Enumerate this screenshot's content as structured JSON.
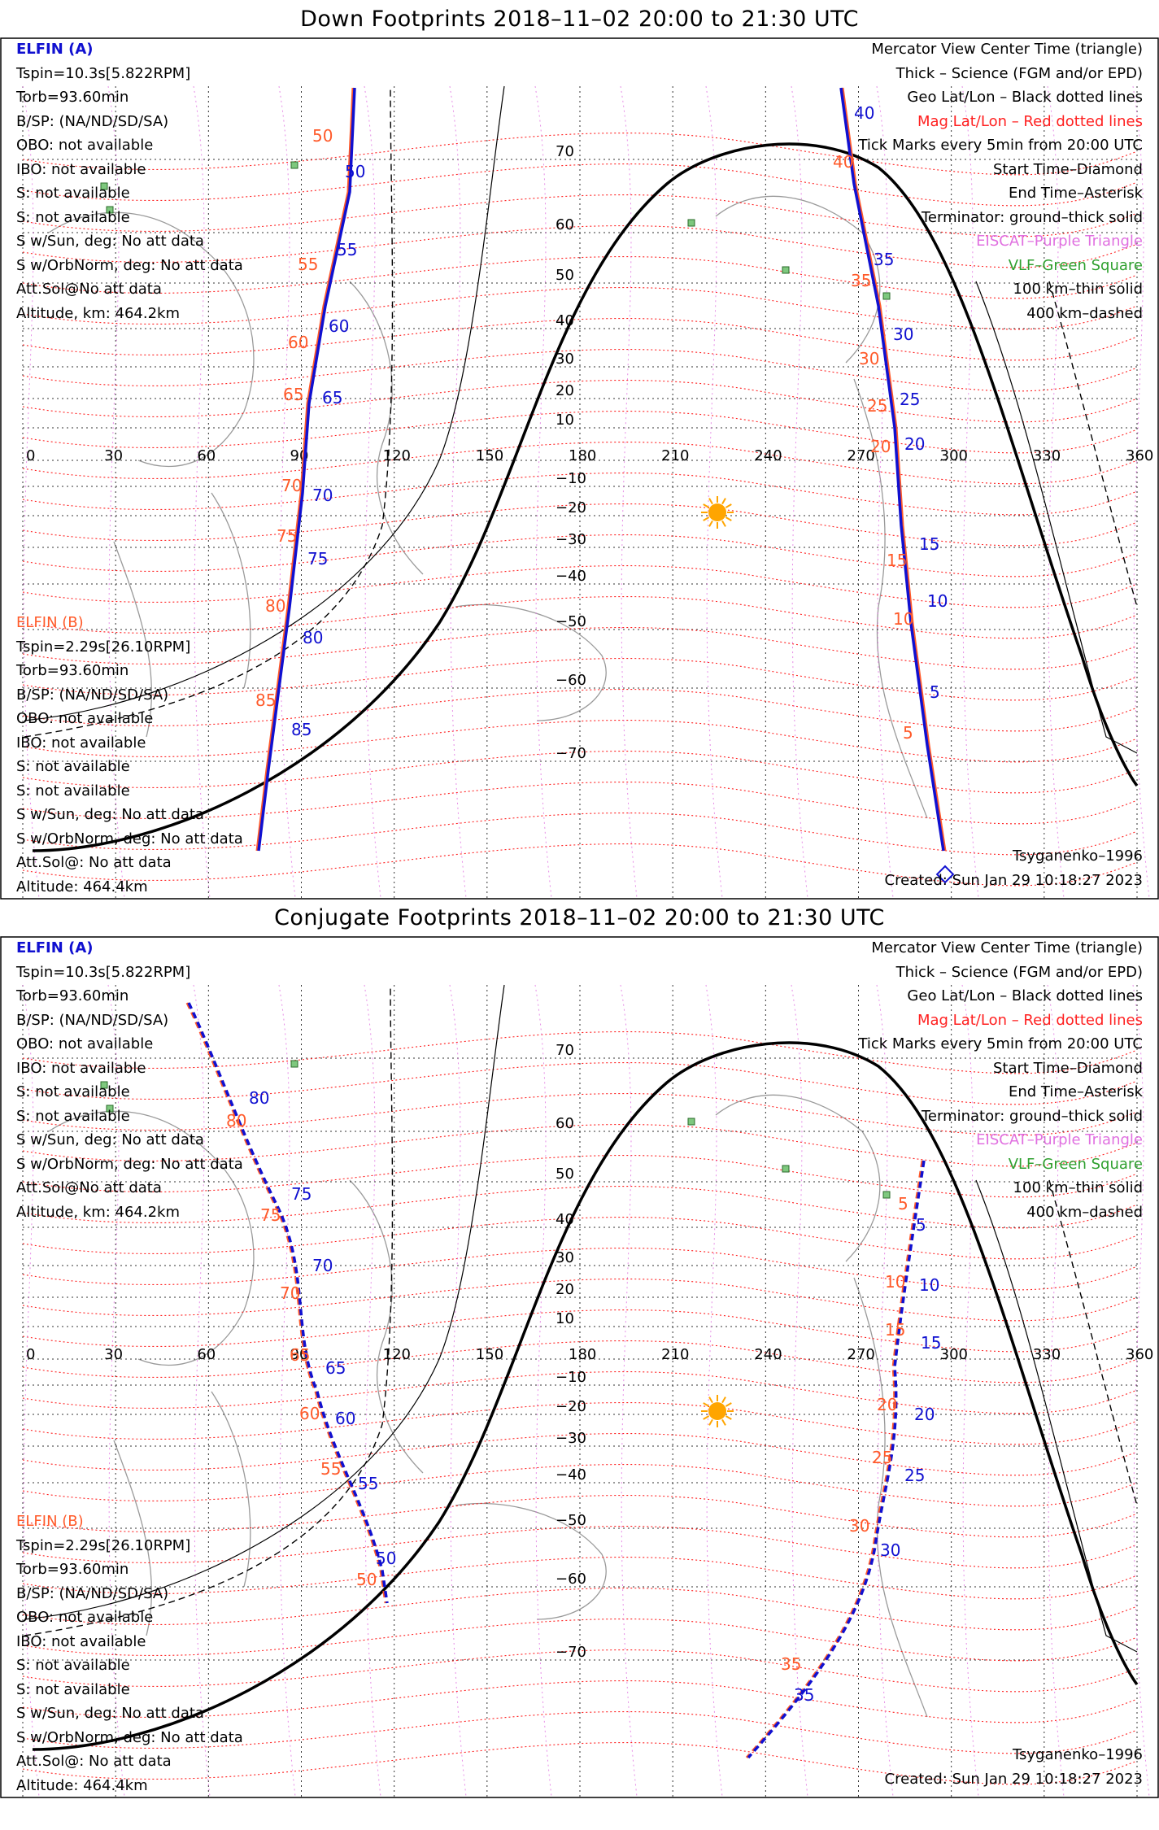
{
  "panels": [
    {
      "id": "down",
      "title": "Down Footprints 2018–11–02 20:00 to 21:30 UTC",
      "elfin_a": {
        "name": "ELFIN (A)",
        "lines": [
          "Tspin=10.3s[5.822RPM]",
          "Torb=93.60min",
          "B/SP: (NA/ND/SD/SA)",
          "OBO: not available",
          "IBO: not available",
          "S: not available",
          "S: not available",
          "S w/Sun, deg: No att data",
          "S w/OrbNorm, deg: No att data",
          "Att.Sol@No att data",
          "Altitude, km: 464.2km"
        ]
      },
      "elfin_b": {
        "name": "ELFIN (B)",
        "lines": [
          "Tspin=2.29s[26.10RPM]",
          "Torb=93.60min",
          "B/SP: (NA/ND/SD/SA)",
          "OBO: not available",
          "IBO: not available",
          "S: not available",
          "S: not available",
          "S w/Sun, deg: No att data",
          "S w/OrbNorm, deg: No att data",
          "Att.Sol@: No att data",
          "Altitude: 464.4km"
        ]
      },
      "legend": [
        {
          "text": "Mercator View Center Time (triangle)",
          "color": "#000000"
        },
        {
          "text": "Thick – Science (FGM and/or EPD)",
          "color": "#000000"
        },
        {
          "text": "Geo Lat/Lon – Black dotted lines",
          "color": "#000000"
        },
        {
          "text": "Mag Lat/Lon – Red dotted lines",
          "color": "#ff2020"
        },
        {
          "text": "Tick Marks every 5min from 20:00 UTC",
          "color": "#000000"
        },
        {
          "text": "Start Time–Diamond",
          "color": "#000000"
        },
        {
          "text": "End Time–Asterisk",
          "color": "#000000"
        },
        {
          "text": "Terminator: ground–thick solid",
          "color": "#000000"
        },
        {
          "text": "EISCAT–Purple Triangle",
          "color": "#e070e0"
        },
        {
          "text": "VLF–Green Square",
          "color": "#30a030"
        },
        {
          "text": "100 km–thin solid",
          "color": "#000000"
        },
        {
          "text": "400 km–dashed",
          "color": "#000000"
        }
      ],
      "model": "Tsyganenko–1996",
      "created": "Created: Sun Jan 29 10:18:27 2023",
      "west_track": {
        "ticks_a": [
          "50",
          "55",
          "60",
          "65",
          "70",
          "75",
          "80",
          "85"
        ],
        "ticks_b": [
          "50",
          "55",
          "60",
          "65",
          "70",
          "75",
          "80",
          "85"
        ]
      },
      "east_track": {
        "ticks_a": [
          "40",
          "35",
          "30",
          "25",
          "20",
          "15",
          "10",
          "5"
        ],
        "ticks_b": [
          "40",
          "35",
          "30",
          "25",
          "20",
          "15",
          "10",
          "5"
        ]
      }
    },
    {
      "id": "conj",
      "title": "Conjugate Footprints 2018–11–02 20:00 to 21:30 UTC",
      "elfin_a": {
        "name": "ELFIN (A)",
        "lines": [
          "Tspin=10.3s[5.822RPM]",
          "Torb=93.60min",
          "B/SP: (NA/ND/SD/SA)",
          "OBO: not available",
          "IBO: not available",
          "S: not available",
          "S: not available",
          "S w/Sun, deg: No att data",
          "S w/OrbNorm, deg: No att data",
          "Att.Sol@No att data",
          "Altitude, km: 464.2km"
        ]
      },
      "elfin_b": {
        "name": "ELFIN (B)",
        "lines": [
          "Tspin=2.29s[26.10RPM]",
          "Torb=93.60min",
          "B/SP: (NA/ND/SD/SA)",
          "OBO: not available",
          "IBO: not available",
          "S: not available",
          "S: not available",
          "S w/Sun, deg: No att data",
          "S w/OrbNorm, deg: No att data",
          "Att.Sol@: No att data",
          "Altitude: 464.4km"
        ]
      },
      "legend": [
        {
          "text": "Mercator View Center Time (triangle)",
          "color": "#000000"
        },
        {
          "text": "Thick – Science (FGM and/or EPD)",
          "color": "#000000"
        },
        {
          "text": "Geo Lat/Lon – Black dotted lines",
          "color": "#000000"
        },
        {
          "text": "Mag Lat/Lon – Red dotted lines",
          "color": "#ff2020"
        },
        {
          "text": "Tick Marks every 5min from 20:00 UTC",
          "color": "#000000"
        },
        {
          "text": "Start Time–Diamond",
          "color": "#000000"
        },
        {
          "text": "End Time–Asterisk",
          "color": "#000000"
        },
        {
          "text": "Terminator: ground–thick solid",
          "color": "#000000"
        },
        {
          "text": "EISCAT–Purple Triangle",
          "color": "#e070e0"
        },
        {
          "text": "VLF–Green Square",
          "color": "#30a030"
        },
        {
          "text": "100 km–thin solid",
          "color": "#000000"
        },
        {
          "text": "400 km–dashed",
          "color": "#000000"
        }
      ],
      "model": "Tsyganenko–1996",
      "created": "Created: Sun Jan 29 10:18:27 2023",
      "west_track": {
        "ticks_a": [
          "80",
          "75",
          "70",
          "65",
          "60",
          "55",
          "50"
        ],
        "ticks_b": [
          "80",
          "75",
          "70",
          "65",
          "60",
          "55",
          "50"
        ]
      },
      "east_track": {
        "ticks_a": [
          "5",
          "10",
          "15",
          "20",
          "25",
          "30",
          "35"
        ],
        "ticks_b": [
          "5",
          "10",
          "15",
          "20",
          "25",
          "30",
          "35"
        ]
      }
    }
  ],
  "axes": {
    "lon_ticks": [
      "0",
      "30",
      "60",
      "90",
      "120",
      "150",
      "180",
      "210",
      "240",
      "270",
      "300",
      "330",
      "360"
    ],
    "lat_ticks": [
      "70",
      "60",
      "50",
      "40",
      "30",
      "20",
      "10",
      "−10",
      "−20",
      "−30",
      "−40",
      "−50",
      "−60",
      "−70"
    ]
  },
  "colors": {
    "elfin_a": "#1010d0",
    "elfin_b": "#ff5a2a",
    "mag_grid": "#ff2020",
    "eiscat": "#e070e0",
    "vlf": "#30a030",
    "sun": "#ffa500"
  }
}
